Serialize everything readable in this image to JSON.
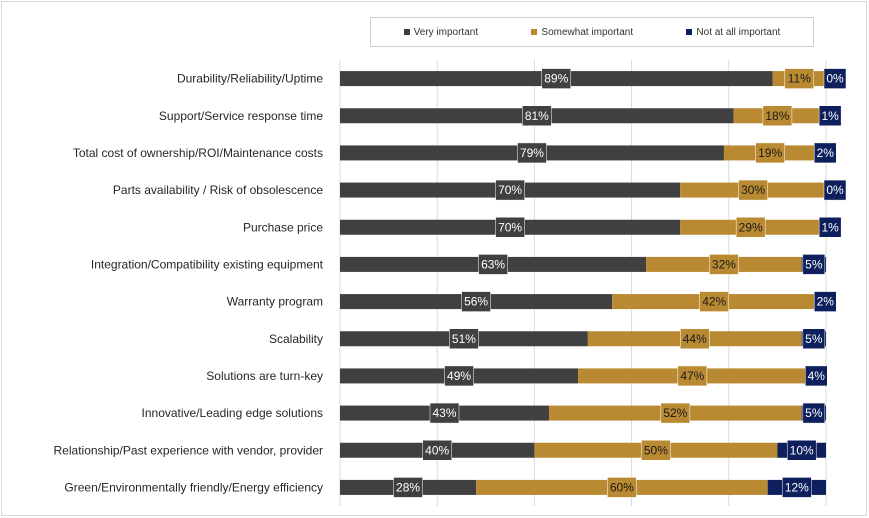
{
  "chart_data": {
    "type": "bar",
    "orientation": "horizontal",
    "stacked": true,
    "categories": [
      "Durability/Reliability/Uptime",
      "Support/Service response time",
      "Total cost of ownership/ROI/Maintenance costs",
      "Parts availability / Risk of obsolescence",
      "Purchase price",
      "Integration/Compatibility existing equipment",
      "Warranty program",
      "Scalability",
      "Solutions are turn-key",
      "Innovative/Leading edge solutions",
      "Relationship/Past experience with vendor, provider",
      "Green/Environmentally friendly/Energy efficiency"
    ],
    "series": [
      {
        "name": "Very important",
        "color": "#404040",
        "values": [
          89,
          81,
          79,
          70,
          70,
          63,
          56,
          51,
          49,
          43,
          40,
          28
        ]
      },
      {
        "name": "Somewhat important",
        "color": "#b98a32",
        "values": [
          11,
          18,
          19,
          30,
          29,
          32,
          42,
          44,
          47,
          52,
          50,
          60
        ]
      },
      {
        "name": "Not at all important",
        "color": "#0d1f5c",
        "values": [
          0,
          1,
          2,
          0,
          1,
          5,
          2,
          5,
          4,
          5,
          10,
          12
        ]
      }
    ],
    "value_suffix": "%",
    "xlim": [
      0,
      100
    ],
    "grid": true,
    "legend_position": "top"
  }
}
